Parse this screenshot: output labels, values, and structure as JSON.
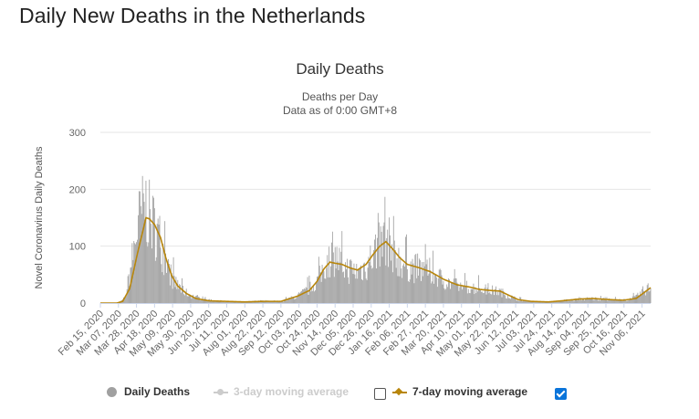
{
  "page": {
    "heading": "Daily New Deaths in the Netherlands"
  },
  "chart_data": {
    "type": "bar",
    "title": "Daily Deaths",
    "subtitle_lines": [
      "Deaths per Day",
      "Data as of 0:00 GMT+8"
    ],
    "ylabel": "Novel Coronavirus Daily Deaths",
    "xlabel": "",
    "ylim": [
      0,
      300
    ],
    "yticks": [
      0,
      100,
      200,
      300
    ],
    "grid": true,
    "start_date": "2020-02-15",
    "end_date": "2021-11-16",
    "tick_labels": [
      "Feb 15, 2020",
      "Mar 07, 2020",
      "Mar 28, 2020",
      "Apr 18, 2020",
      "May 09, 2020",
      "May 30, 2020",
      "Jun 20, 2020",
      "Jul 11, 2020",
      "Aug 01, 2020",
      "Aug 22, 2020",
      "Sep 12, 2020",
      "Oct 03, 2020",
      "Oct 24, 2020",
      "Nov 14, 2020",
      "Dec 05, 2020",
      "Dec 26, 2020",
      "Jan 16, 2021",
      "Feb 06, 2021",
      "Feb 27, 2021",
      "Mar 20, 2021",
      "Apr 10, 2021",
      "May 01, 2021",
      "May 22, 2021",
      "Jun 12, 2021",
      "Jul 03, 2021",
      "Jul 24, 2021",
      "Aug 14, 2021",
      "Sep 04, 2021",
      "Sep 25, 2021",
      "Oct 16, 2021",
      "Nov 06, 2021"
    ],
    "legend_position": "bottom-center",
    "series": [
      {
        "name": "Daily Deaths",
        "type": "bar",
        "color": "#a0a0a0",
        "values_description_omitted": false,
        "x": [
          "2020-02-15",
          "2020-03-05",
          "2020-03-10",
          "2020-03-15",
          "2020-03-20",
          "2020-03-25",
          "2020-03-30",
          "2020-04-04",
          "2020-04-08",
          "2020-04-12",
          "2020-04-16",
          "2020-04-20",
          "2020-04-25",
          "2020-05-01",
          "2020-05-08",
          "2020-05-15",
          "2020-05-25",
          "2020-06-05",
          "2020-06-20",
          "2020-07-10",
          "2020-08-01",
          "2020-08-22",
          "2020-09-12",
          "2020-10-01",
          "2020-10-15",
          "2020-10-25",
          "2020-11-05",
          "2020-11-14",
          "2020-11-28",
          "2020-12-10",
          "2020-12-20",
          "2020-12-28",
          "2021-01-05",
          "2021-01-12",
          "2021-01-20",
          "2021-01-28",
          "2021-02-06",
          "2021-02-20",
          "2021-03-05",
          "2021-03-20",
          "2021-04-05",
          "2021-04-20",
          "2021-05-01",
          "2021-05-15",
          "2021-05-25",
          "2021-06-05",
          "2021-06-15",
          "2021-06-30",
          "2021-07-20",
          "2021-08-05",
          "2021-08-25",
          "2021-09-10",
          "2021-09-30",
          "2021-10-15",
          "2021-10-30",
          "2021-11-08",
          "2021-11-16"
        ],
        "y": [
          0,
          0,
          3,
          10,
          50,
          95,
          140,
          160,
          170,
          150,
          140,
          130,
          110,
          75,
          45,
          30,
          18,
          10,
          5,
          3,
          2,
          4,
          3,
          12,
          25,
          40,
          75,
          80,
          60,
          55,
          65,
          85,
          100,
          115,
          95,
          75,
          65,
          60,
          55,
          40,
          30,
          28,
          25,
          22,
          20,
          12,
          6,
          3,
          2,
          4,
          7,
          8,
          6,
          5,
          10,
          22,
          28
        ]
      },
      {
        "name": "3-day moving average",
        "type": "line",
        "color": "#cccccc",
        "enabled": false
      },
      {
        "name": "7-day moving average",
        "type": "line",
        "color": "#b8860b",
        "enabled": true,
        "x": [
          "2020-02-15",
          "2020-03-05",
          "2020-03-12",
          "2020-03-20",
          "2020-03-28",
          "2020-04-05",
          "2020-04-08",
          "2020-04-12",
          "2020-04-18",
          "2020-04-25",
          "2020-05-01",
          "2020-05-08",
          "2020-05-15",
          "2020-05-25",
          "2020-06-05",
          "2020-06-20",
          "2020-07-10",
          "2020-08-01",
          "2020-08-22",
          "2020-09-12",
          "2020-10-01",
          "2020-10-15",
          "2020-10-24",
          "2020-11-01",
          "2020-11-08",
          "2020-11-14",
          "2020-11-22",
          "2020-12-01",
          "2020-12-10",
          "2020-12-20",
          "2020-12-28",
          "2021-01-05",
          "2021-01-12",
          "2021-01-20",
          "2021-01-28",
          "2021-02-06",
          "2021-02-20",
          "2021-03-05",
          "2021-03-20",
          "2021-04-05",
          "2021-04-20",
          "2021-05-01",
          "2021-05-15",
          "2021-05-25",
          "2021-06-05",
          "2021-06-15",
          "2021-06-30",
          "2021-07-20",
          "2021-08-05",
          "2021-08-25",
          "2021-09-10",
          "2021-09-30",
          "2021-10-15",
          "2021-10-30",
          "2021-11-08",
          "2021-11-16"
        ],
        "y": [
          0,
          0,
          3,
          25,
          80,
          130,
          150,
          148,
          138,
          115,
          80,
          48,
          30,
          17,
          8,
          4,
          3,
          2,
          3,
          3,
          12,
          22,
          38,
          60,
          72,
          70,
          68,
          62,
          58,
          68,
          85,
          100,
          108,
          95,
          80,
          68,
          62,
          55,
          42,
          32,
          28,
          24,
          22,
          21,
          13,
          6,
          3,
          2,
          4,
          7,
          8,
          6,
          5,
          8,
          18,
          27
        ]
      }
    ]
  },
  "legend": {
    "items": [
      {
        "label": "Daily Deaths",
        "active": true
      },
      {
        "label": "3-day moving average",
        "active": false
      },
      {
        "label": "7-day moving average",
        "active": true
      }
    ]
  }
}
